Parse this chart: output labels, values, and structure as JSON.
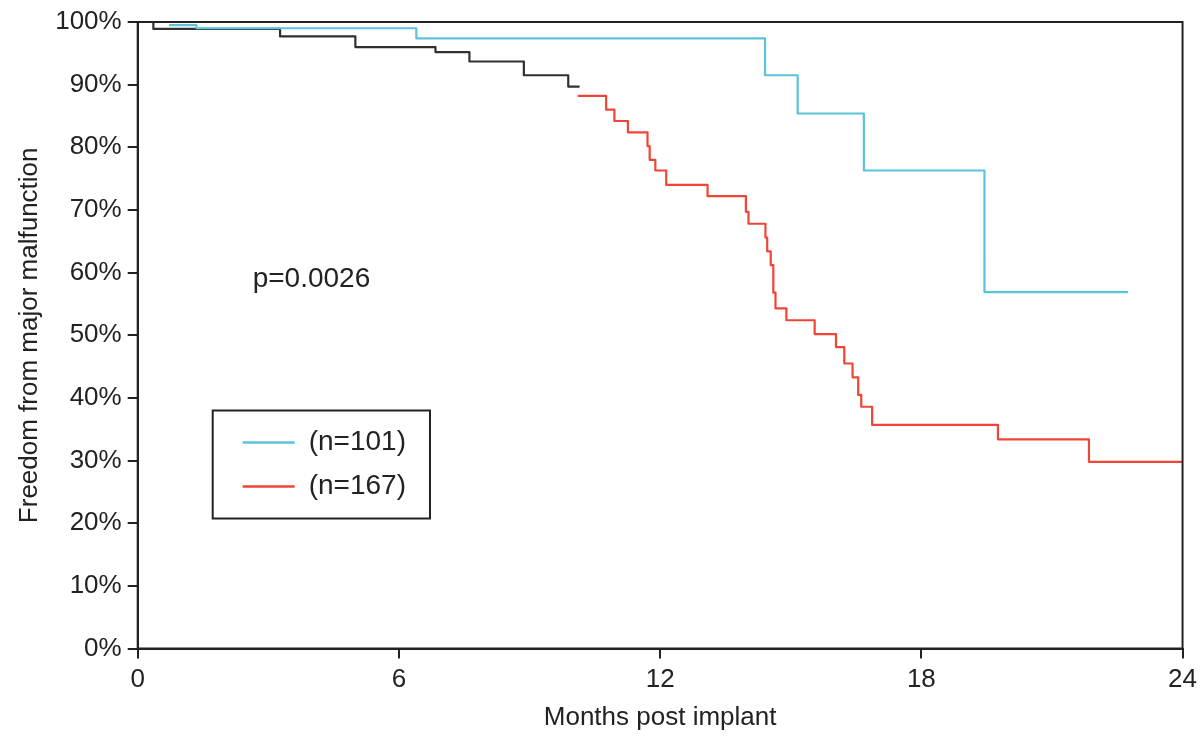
{
  "chart_data": {
    "type": "step",
    "xlabel": "Months post implant",
    "ylabel": "Freedom from major malfunction",
    "annotations": [
      "p=0.0026"
    ],
    "series": [
      {
        "name": "(n=101)",
        "color": "#5bc3d9",
        "x": [
          0.72,
          1.35,
          6.4,
          14.41,
          15.16,
          16.68,
          19.45,
          22.75
        ],
        "values": [
          99.5,
          99.0,
          97.4,
          91.5,
          85.4,
          76.3,
          56.9,
          56.9
        ]
      },
      {
        "name": "(n=167)",
        "color": "#f04535",
        "x": [
          10.11,
          10.76,
          10.95,
          11.26,
          11.71,
          11.76,
          11.89,
          12.14,
          13.09,
          13.97,
          14.03,
          14.42,
          14.46,
          14.54,
          14.6,
          14.65,
          14.9,
          15.55,
          16.04,
          16.23,
          16.42,
          16.55,
          16.62,
          16.87,
          19.76,
          21.85,
          24
        ],
        "values": [
          88.2,
          86.0,
          84.2,
          82.4,
          80.2,
          78.0,
          76.3,
          74.0,
          72.2,
          69.7,
          67.8,
          65.6,
          63.4,
          61.2,
          56.8,
          54.3,
          52.4,
          50.2,
          48.1,
          45.5,
          43.3,
          40.5,
          38.6,
          35.7,
          33.4,
          29.8,
          29.8
        ]
      },
      {
        "color": "#303030",
        "x": [
          0,
          0.36,
          3.27,
          5.0,
          6.84,
          7.62,
          8.87,
          9.89,
          10.15
        ],
        "values": [
          100,
          98.9,
          97.7,
          96.0,
          95.2,
          93.7,
          91.5,
          89.7,
          89.7
        ]
      }
    ],
    "xlim": [
      0,
      24
    ],
    "xticks": [
      0,
      6,
      12,
      18,
      24
    ],
    "ylim": [
      0,
      100
    ],
    "yticks": [
      {
        "value": 0,
        "label": "0%"
      },
      {
        "value": 10,
        "label": "10%"
      },
      {
        "value": 20,
        "label": "20%"
      },
      {
        "value": 30,
        "label": "30%"
      },
      {
        "value": 40,
        "label": "40%"
      },
      {
        "value": 50,
        "label": "50%"
      },
      {
        "value": 60,
        "label": "60%"
      },
      {
        "value": 70,
        "label": "70%"
      },
      {
        "value": 80,
        "label": "80%"
      },
      {
        "value": 90,
        "label": "90%"
      },
      {
        "value": 100,
        "label": "100%"
      }
    ],
    "grid": false,
    "legend": "left",
    "line_style": "solid",
    "marker": "none"
  }
}
